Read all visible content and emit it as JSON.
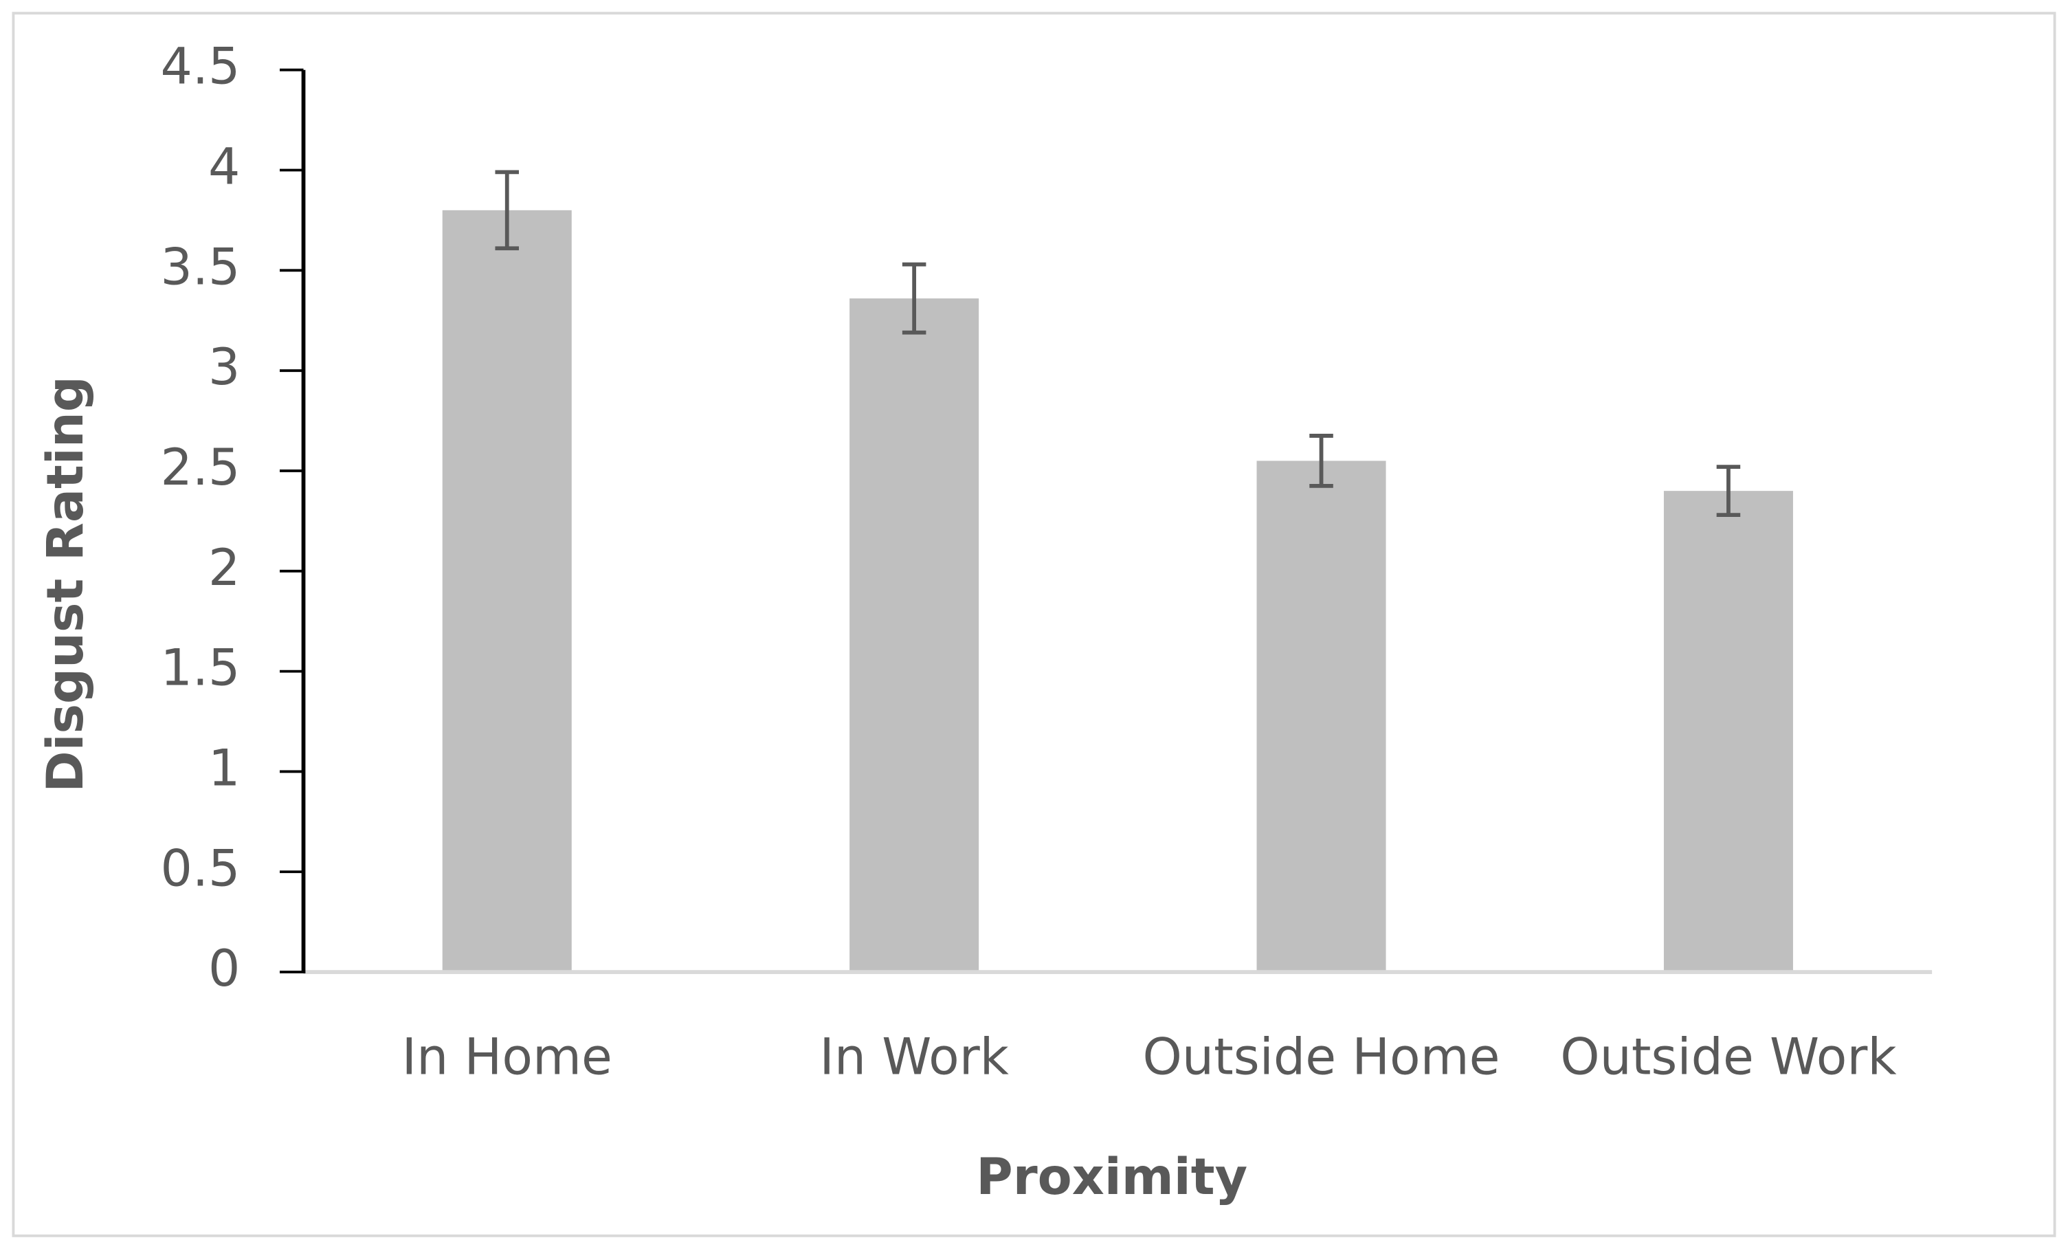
{
  "chart_data": {
    "type": "bar",
    "x_label": "Proximity",
    "y_label": "Disgust Rating",
    "categories": [
      "In Home",
      "In Work",
      "Outside Home",
      "Outside Work"
    ],
    "values": [
      3.8,
      3.36,
      2.55,
      2.4
    ],
    "errors": [
      0.19,
      0.17,
      0.125,
      0.12
    ],
    "color": "#bfbfbf",
    "error_color": "#595959",
    "ylim": [
      0,
      4.5
    ],
    "yticks": [
      0,
      0.5,
      1,
      1.5,
      2,
      2.5,
      3,
      3.5,
      4,
      4.5
    ],
    "grid": false
  }
}
